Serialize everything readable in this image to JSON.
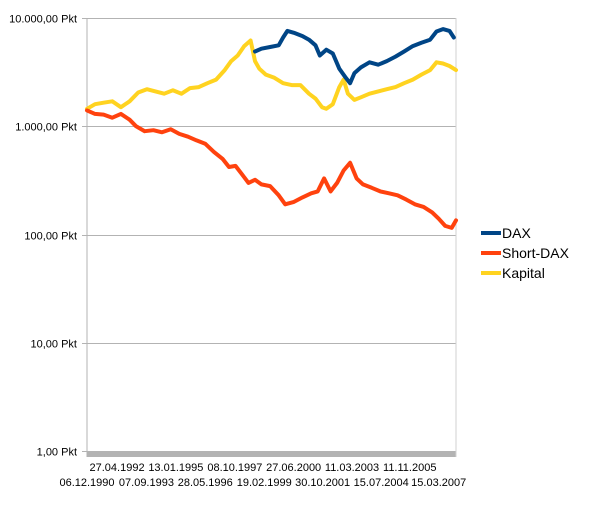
{
  "chart_data": {
    "type": "line",
    "title": "",
    "xlabel": "",
    "ylabel": "",
    "yscale": "log",
    "ylim": [
      1,
      10000
    ],
    "y_ticks": [
      {
        "value": 10000,
        "label": "10.000,00 Pkt"
      },
      {
        "value": 1000,
        "label": "1.000,00 Pkt"
      },
      {
        "value": 100,
        "label": "100,00 Pkt"
      },
      {
        "value": 10,
        "label": "10,00 Pkt"
      },
      {
        "value": 1,
        "label": "1,00 Pkt"
      }
    ],
    "x_range": [
      1990.93,
      2008.0
    ],
    "x_ticks_row1": [
      {
        "x": 1992.32,
        "label": "27.04.1992"
      },
      {
        "x": 1995.04,
        "label": "13.01.1995"
      },
      {
        "x": 1997.77,
        "label": "08.10.1997"
      },
      {
        "x": 2000.49,
        "label": "27.06.2000"
      },
      {
        "x": 2003.19,
        "label": "11.03.2003"
      },
      {
        "x": 2005.86,
        "label": "11.11.2005"
      }
    ],
    "x_ticks_row2": [
      {
        "x": 1990.93,
        "label": "06.12.1990"
      },
      {
        "x": 1993.68,
        "label": "07.09.1993"
      },
      {
        "x": 1996.4,
        "label": "28.05.1996"
      },
      {
        "x": 1999.13,
        "label": "19.02.1999"
      },
      {
        "x": 2001.83,
        "label": "30.10.2001"
      },
      {
        "x": 2004.54,
        "label": "15.07.2004"
      },
      {
        "x": 2007.2,
        "label": "15.03.2007"
      }
    ],
    "grid": true,
    "legend_position": "right",
    "series": [
      {
        "name": "DAX",
        "color": "#004586",
        "x": [
          1998.7,
          1999.0,
          1999.4,
          1999.8,
          2000.0,
          2000.2,
          2000.5,
          2000.9,
          2001.2,
          2001.5,
          2001.7,
          2002.0,
          2002.3,
          2002.6,
          2002.9,
          2003.1,
          2003.3,
          2003.6,
          2004.0,
          2004.4,
          2004.8,
          2005.2,
          2005.6,
          2006.0,
          2006.4,
          2006.8,
          2007.1,
          2007.4,
          2007.7,
          2007.9
        ],
        "values": [
          4900,
          5200,
          5400,
          5600,
          6600,
          7600,
          7300,
          6800,
          6300,
          5600,
          4500,
          5100,
          4700,
          3400,
          2800,
          2500,
          3100,
          3500,
          3900,
          3700,
          4000,
          4400,
          4900,
          5500,
          5900,
          6300,
          7500,
          7900,
          7600,
          6600
        ]
      },
      {
        "name": "Short-DAX",
        "color": "#ff420e",
        "x": [
          1990.93,
          1991.3,
          1991.7,
          1992.1,
          1992.5,
          1992.9,
          1993.2,
          1993.6,
          1994.0,
          1994.4,
          1994.8,
          1995.2,
          1995.6,
          1996.0,
          1996.4,
          1996.8,
          1997.2,
          1997.5,
          1997.8,
          1998.1,
          1998.4,
          1998.7,
          1999.0,
          1999.4,
          1999.8,
          2000.1,
          2000.5,
          2000.9,
          2001.3,
          2001.6,
          2001.9,
          2002.2,
          2002.5,
          2002.8,
          2003.1,
          2003.4,
          2003.7,
          2004.1,
          2004.5,
          2004.9,
          2005.3,
          2005.7,
          2006.1,
          2006.5,
          2006.9,
          2007.2,
          2007.5,
          2007.8,
          2008.0
        ],
        "values": [
          1400,
          1300,
          1280,
          1200,
          1300,
          1150,
          1000,
          900,
          920,
          880,
          940,
          850,
          800,
          740,
          690,
          580,
          500,
          420,
          430,
          360,
          300,
          320,
          290,
          280,
          230,
          190,
          200,
          220,
          240,
          250,
          330,
          250,
          300,
          390,
          460,
          330,
          290,
          270,
          250,
          240,
          230,
          210,
          190,
          180,
          160,
          140,
          120,
          115,
          135
        ]
      },
      {
        "name": "Kapital",
        "color": "#ffd320",
        "x": [
          1990.93,
          1991.3,
          1991.7,
          1992.1,
          1992.5,
          1992.9,
          1993.3,
          1993.7,
          1994.1,
          1994.5,
          1994.9,
          1995.3,
          1995.7,
          1996.1,
          1996.5,
          1996.9,
          1997.3,
          1997.6,
          1997.9,
          1998.2,
          1998.5,
          1998.7,
          1998.9,
          1999.2,
          1999.6,
          2000.0,
          2000.4,
          2000.8,
          2001.2,
          2001.5,
          2001.8,
          2002.0,
          2002.3,
          2002.6,
          2002.8,
          2003.0,
          2003.3,
          2003.6,
          2004.0,
          2004.4,
          2004.8,
          2005.2,
          2005.6,
          2006.0,
          2006.4,
          2006.8,
          2007.1,
          2007.4,
          2007.7,
          2008.0
        ],
        "values": [
          1450,
          1600,
          1650,
          1700,
          1500,
          1700,
          2050,
          2200,
          2100,
          2000,
          2150,
          2000,
          2250,
          2300,
          2500,
          2700,
          3300,
          4000,
          4500,
          5500,
          6200,
          4000,
          3400,
          3000,
          2800,
          2500,
          2400,
          2400,
          2000,
          1800,
          1500,
          1450,
          1600,
          2300,
          2700,
          2000,
          1750,
          1850,
          2000,
          2100,
          2200,
          2300,
          2500,
          2700,
          3000,
          3300,
          3900,
          3800,
          3600,
          3300
        ]
      }
    ]
  }
}
